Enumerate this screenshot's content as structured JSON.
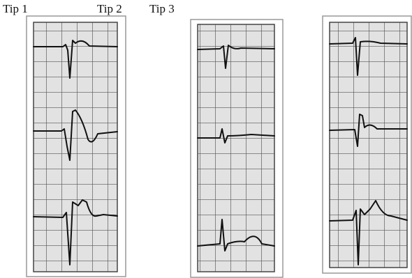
{
  "labels": [
    "Tip 1",
    "Tip 2",
    "Tip 3"
  ]
}
